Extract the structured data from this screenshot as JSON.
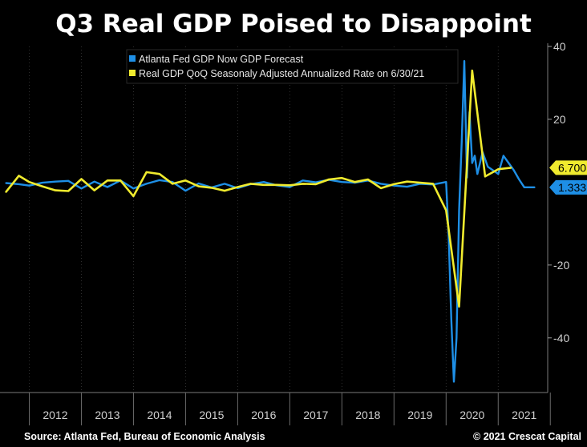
{
  "chart_data": {
    "type": "line",
    "title": "Q3 Real GDP Poised to Disappoint",
    "x_categories": [
      "2012",
      "2013",
      "2014",
      "2015",
      "2016",
      "2017",
      "2018",
      "2019",
      "2020",
      "2021"
    ],
    "ylim": [
      -55,
      40
    ],
    "y_ticks": [
      40,
      20,
      -20,
      -40
    ],
    "legend_position": "top-left",
    "series": [
      {
        "name": "Atlanta Fed GDP Now GDP Forecast",
        "color": "#1e8fe6",
        "x": [
          2011.55,
          2011.8,
          2012.0,
          2012.25,
          2012.5,
          2012.75,
          2013.0,
          2013.25,
          2013.5,
          2013.75,
          2014.0,
          2014.25,
          2014.5,
          2014.75,
          2015.0,
          2015.25,
          2015.5,
          2015.75,
          2016.0,
          2016.25,
          2016.5,
          2016.75,
          2017.0,
          2017.25,
          2017.5,
          2017.75,
          2018.0,
          2018.25,
          2018.5,
          2018.75,
          2019.0,
          2019.25,
          2019.5,
          2019.75,
          2020.0,
          2020.05,
          2020.1,
          2020.15,
          2020.2,
          2020.25,
          2020.3,
          2020.35,
          2020.4,
          2020.45,
          2020.5,
          2020.55,
          2020.6,
          2020.7,
          2020.8,
          2020.9,
          2021.0,
          2021.1,
          2021.2,
          2021.3,
          2021.4,
          2021.5,
          2021.6,
          2021.7
        ],
        "values": [
          2.5,
          2.2,
          1.8,
          2.6,
          2.9,
          3.1,
          1.0,
          2.9,
          1.4,
          3.2,
          1.0,
          2.3,
          3.3,
          2.8,
          0.4,
          2.4,
          1.3,
          2.3,
          1.1,
          2.2,
          2.8,
          1.9,
          1.4,
          3.2,
          2.7,
          3.4,
          2.8,
          2.6,
          3.2,
          2.3,
          1.8,
          1.5,
          2.3,
          2.1,
          2.8,
          -12,
          -35,
          -52,
          -40,
          -5,
          14,
          36,
          4,
          22,
          8,
          10,
          5,
          11,
          7,
          6,
          5,
          10,
          8,
          6,
          3.5,
          1.333,
          1.333,
          1.333
        ]
      },
      {
        "name": "Real GDP QoQ Seasonaly Adjusted Annualized Rate on 6/30/21",
        "color": "#f0eb2e",
        "x": [
          2011.55,
          2011.8,
          2012.0,
          2012.25,
          2012.5,
          2012.75,
          2013.0,
          2013.25,
          2013.5,
          2013.75,
          2014.0,
          2014.25,
          2014.5,
          2014.75,
          2015.0,
          2015.25,
          2015.5,
          2015.75,
          2016.0,
          2016.25,
          2016.5,
          2016.75,
          2017.0,
          2017.25,
          2017.5,
          2017.75,
          2018.0,
          2018.25,
          2018.5,
          2018.75,
          2019.0,
          2019.25,
          2019.5,
          2019.75,
          2020.0,
          2020.25,
          2020.5,
          2020.75,
          2021.0,
          2021.25
        ],
        "values": [
          0.0,
          4.5,
          2.8,
          1.6,
          0.5,
          0.3,
          3.6,
          0.5,
          3.2,
          3.2,
          -1.1,
          5.5,
          5.0,
          2.3,
          3.2,
          1.6,
          1.2,
          0.4,
          1.4,
          2.3,
          2.0,
          2.0,
          1.9,
          2.3,
          2.2,
          3.5,
          3.9,
          2.8,
          3.5,
          1.1,
          2.2,
          2.9,
          2.6,
          2.3,
          -5.0,
          -31.4,
          33.4,
          4.3,
          6.3,
          6.7
        ]
      }
    ],
    "last_value_labels": [
      {
        "series": "Real GDP QoQ Seasonaly Adjusted Annualized Rate on 6/30/21",
        "text": "6.700"
      },
      {
        "series": "Atlanta Fed GDP Now GDP Forecast",
        "text": "1.333"
      }
    ]
  },
  "footer": {
    "source": "Source: Atlanta Fed, Bureau of Economic Analysis",
    "copyright": "© 2021 Crescat Capital"
  }
}
